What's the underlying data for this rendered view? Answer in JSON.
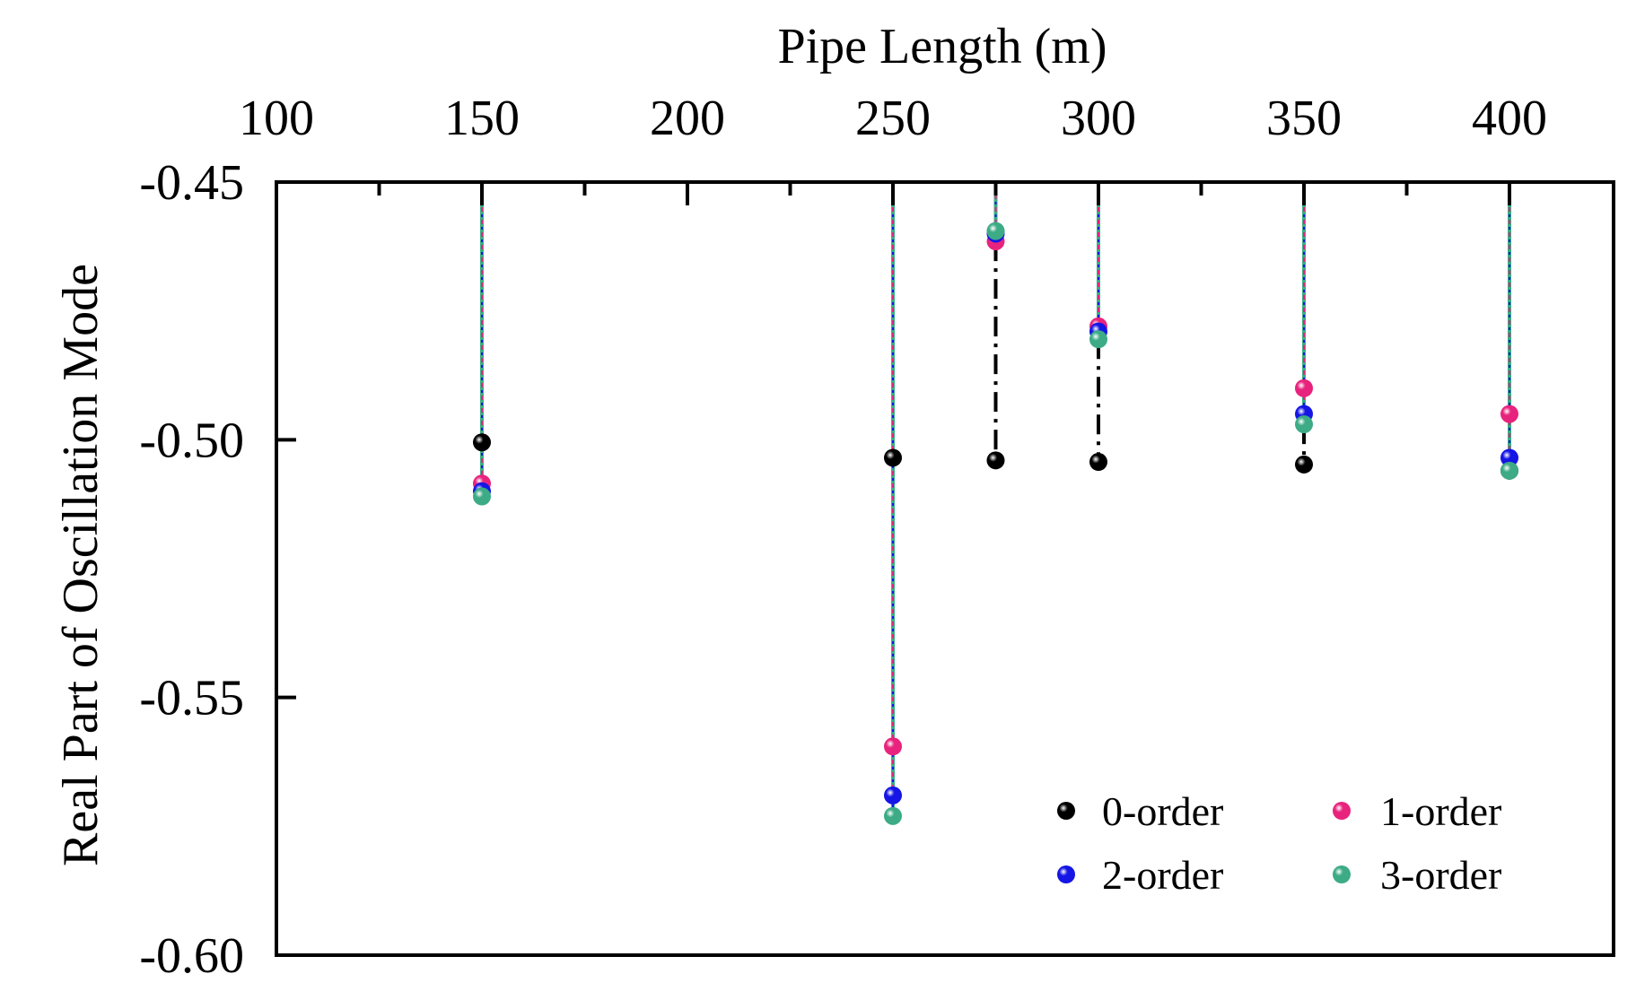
{
  "chart_data": {
    "type": "scatter",
    "title": "",
    "xlabel": "Pipe Length (m)",
    "ylabel": "Real Part of Oscillation Mode",
    "xaxis_position": "top",
    "xlim": [
      100,
      425
    ],
    "ylim": [
      -0.6,
      -0.45
    ],
    "xticks": [
      100,
      150,
      200,
      250,
      300,
      350,
      400
    ],
    "xtick_labels": [
      "100",
      "150",
      "200",
      "250",
      "300",
      "350",
      "400"
    ],
    "yticks": [
      -0.45,
      -0.5,
      -0.55,
      -0.6
    ],
    "ytick_labels": [
      "-0.45",
      "-0.50",
      "-0.55",
      "-0.60"
    ],
    "grid": false,
    "legend_position": "bottom-right",
    "x": [
      150,
      250,
      275,
      300,
      350,
      400
    ],
    "series": [
      {
        "name": "0-order",
        "color": "#000000",
        "values": [
          -0.5005,
          -0.5035,
          -0.504,
          -0.5043,
          -0.5048,
          -0.506
        ]
      },
      {
        "name": "1-order",
        "color": "#e8237d",
        "values": [
          -0.5085,
          -0.5595,
          -0.4615,
          -0.478,
          -0.49,
          -0.495
        ]
      },
      {
        "name": "2-order",
        "color": "#1515e6",
        "values": [
          -0.51,
          -0.569,
          -0.46,
          -0.479,
          -0.495,
          -0.5035
        ]
      },
      {
        "name": "3-order",
        "color": "#3cab86",
        "values": [
          -0.511,
          -0.573,
          -0.4595,
          -0.4805,
          -0.497,
          -0.506
        ]
      }
    ]
  }
}
